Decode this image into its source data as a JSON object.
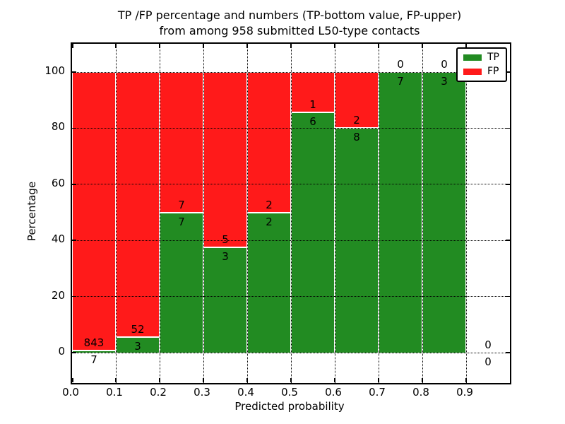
{
  "chart_data": {
    "type": "bar",
    "variant": "stacked-percentage-histogram",
    "title_line1": "TP /FP percentage and numbers (TP-bottom value, FP-upper)",
    "title_line2": "from among 958 submitted L50-type contacts",
    "xlabel": "Predicted probability",
    "ylabel": "Percentage",
    "total_contacts": 958,
    "xlim": [
      0.0,
      1.0
    ],
    "ylim": [
      0,
      100
    ],
    "x_tick_labels": [
      "0.0",
      "0.1",
      "0.2",
      "0.3",
      "0.4",
      "0.5",
      "0.6",
      "0.7",
      "0.8",
      "0.9"
    ],
    "x_tick_values": [
      0.0,
      0.1,
      0.2,
      0.3,
      0.4,
      0.5,
      0.6,
      0.7,
      0.8,
      0.9
    ],
    "y_tick_labels": [
      "0",
      "20",
      "40",
      "60",
      "80",
      "100"
    ],
    "y_tick_values": [
      0,
      20,
      40,
      60,
      80,
      100
    ],
    "grid": "dotted",
    "annotation_rule": "TP count below segment boundary, FP count above",
    "bins": [
      {
        "range": [
          0.0,
          0.1
        ],
        "tp": 7,
        "fp": 843
      },
      {
        "range": [
          0.1,
          0.2
        ],
        "tp": 3,
        "fp": 52
      },
      {
        "range": [
          0.2,
          0.3
        ],
        "tp": 7,
        "fp": 7
      },
      {
        "range": [
          0.3,
          0.4
        ],
        "tp": 3,
        "fp": 5
      },
      {
        "range": [
          0.4,
          0.5
        ],
        "tp": 2,
        "fp": 2
      },
      {
        "range": [
          0.5,
          0.6
        ],
        "tp": 6,
        "fp": 1
      },
      {
        "range": [
          0.6,
          0.7
        ],
        "tp": 8,
        "fp": 2
      },
      {
        "range": [
          0.7,
          0.8
        ],
        "tp": 7,
        "fp": 0
      },
      {
        "range": [
          0.8,
          0.9
        ],
        "tp": 3,
        "fp": 0
      },
      {
        "range": [
          0.9,
          1.0
        ],
        "tp": 0,
        "fp": 0
      }
    ],
    "series": [
      {
        "name": "TP",
        "color": "#228b22",
        "values": [
          7,
          3,
          7,
          3,
          2,
          6,
          8,
          7,
          3,
          0
        ]
      },
      {
        "name": "FP",
        "color": "#ff1a1a",
        "values": [
          843,
          52,
          7,
          5,
          2,
          1,
          2,
          0,
          0,
          0
        ]
      }
    ],
    "legend": {
      "position": "upper right",
      "entries": [
        {
          "label": "TP",
          "color": "#228b22"
        },
        {
          "label": "FP",
          "color": "#ff1a1a"
        }
      ]
    }
  }
}
